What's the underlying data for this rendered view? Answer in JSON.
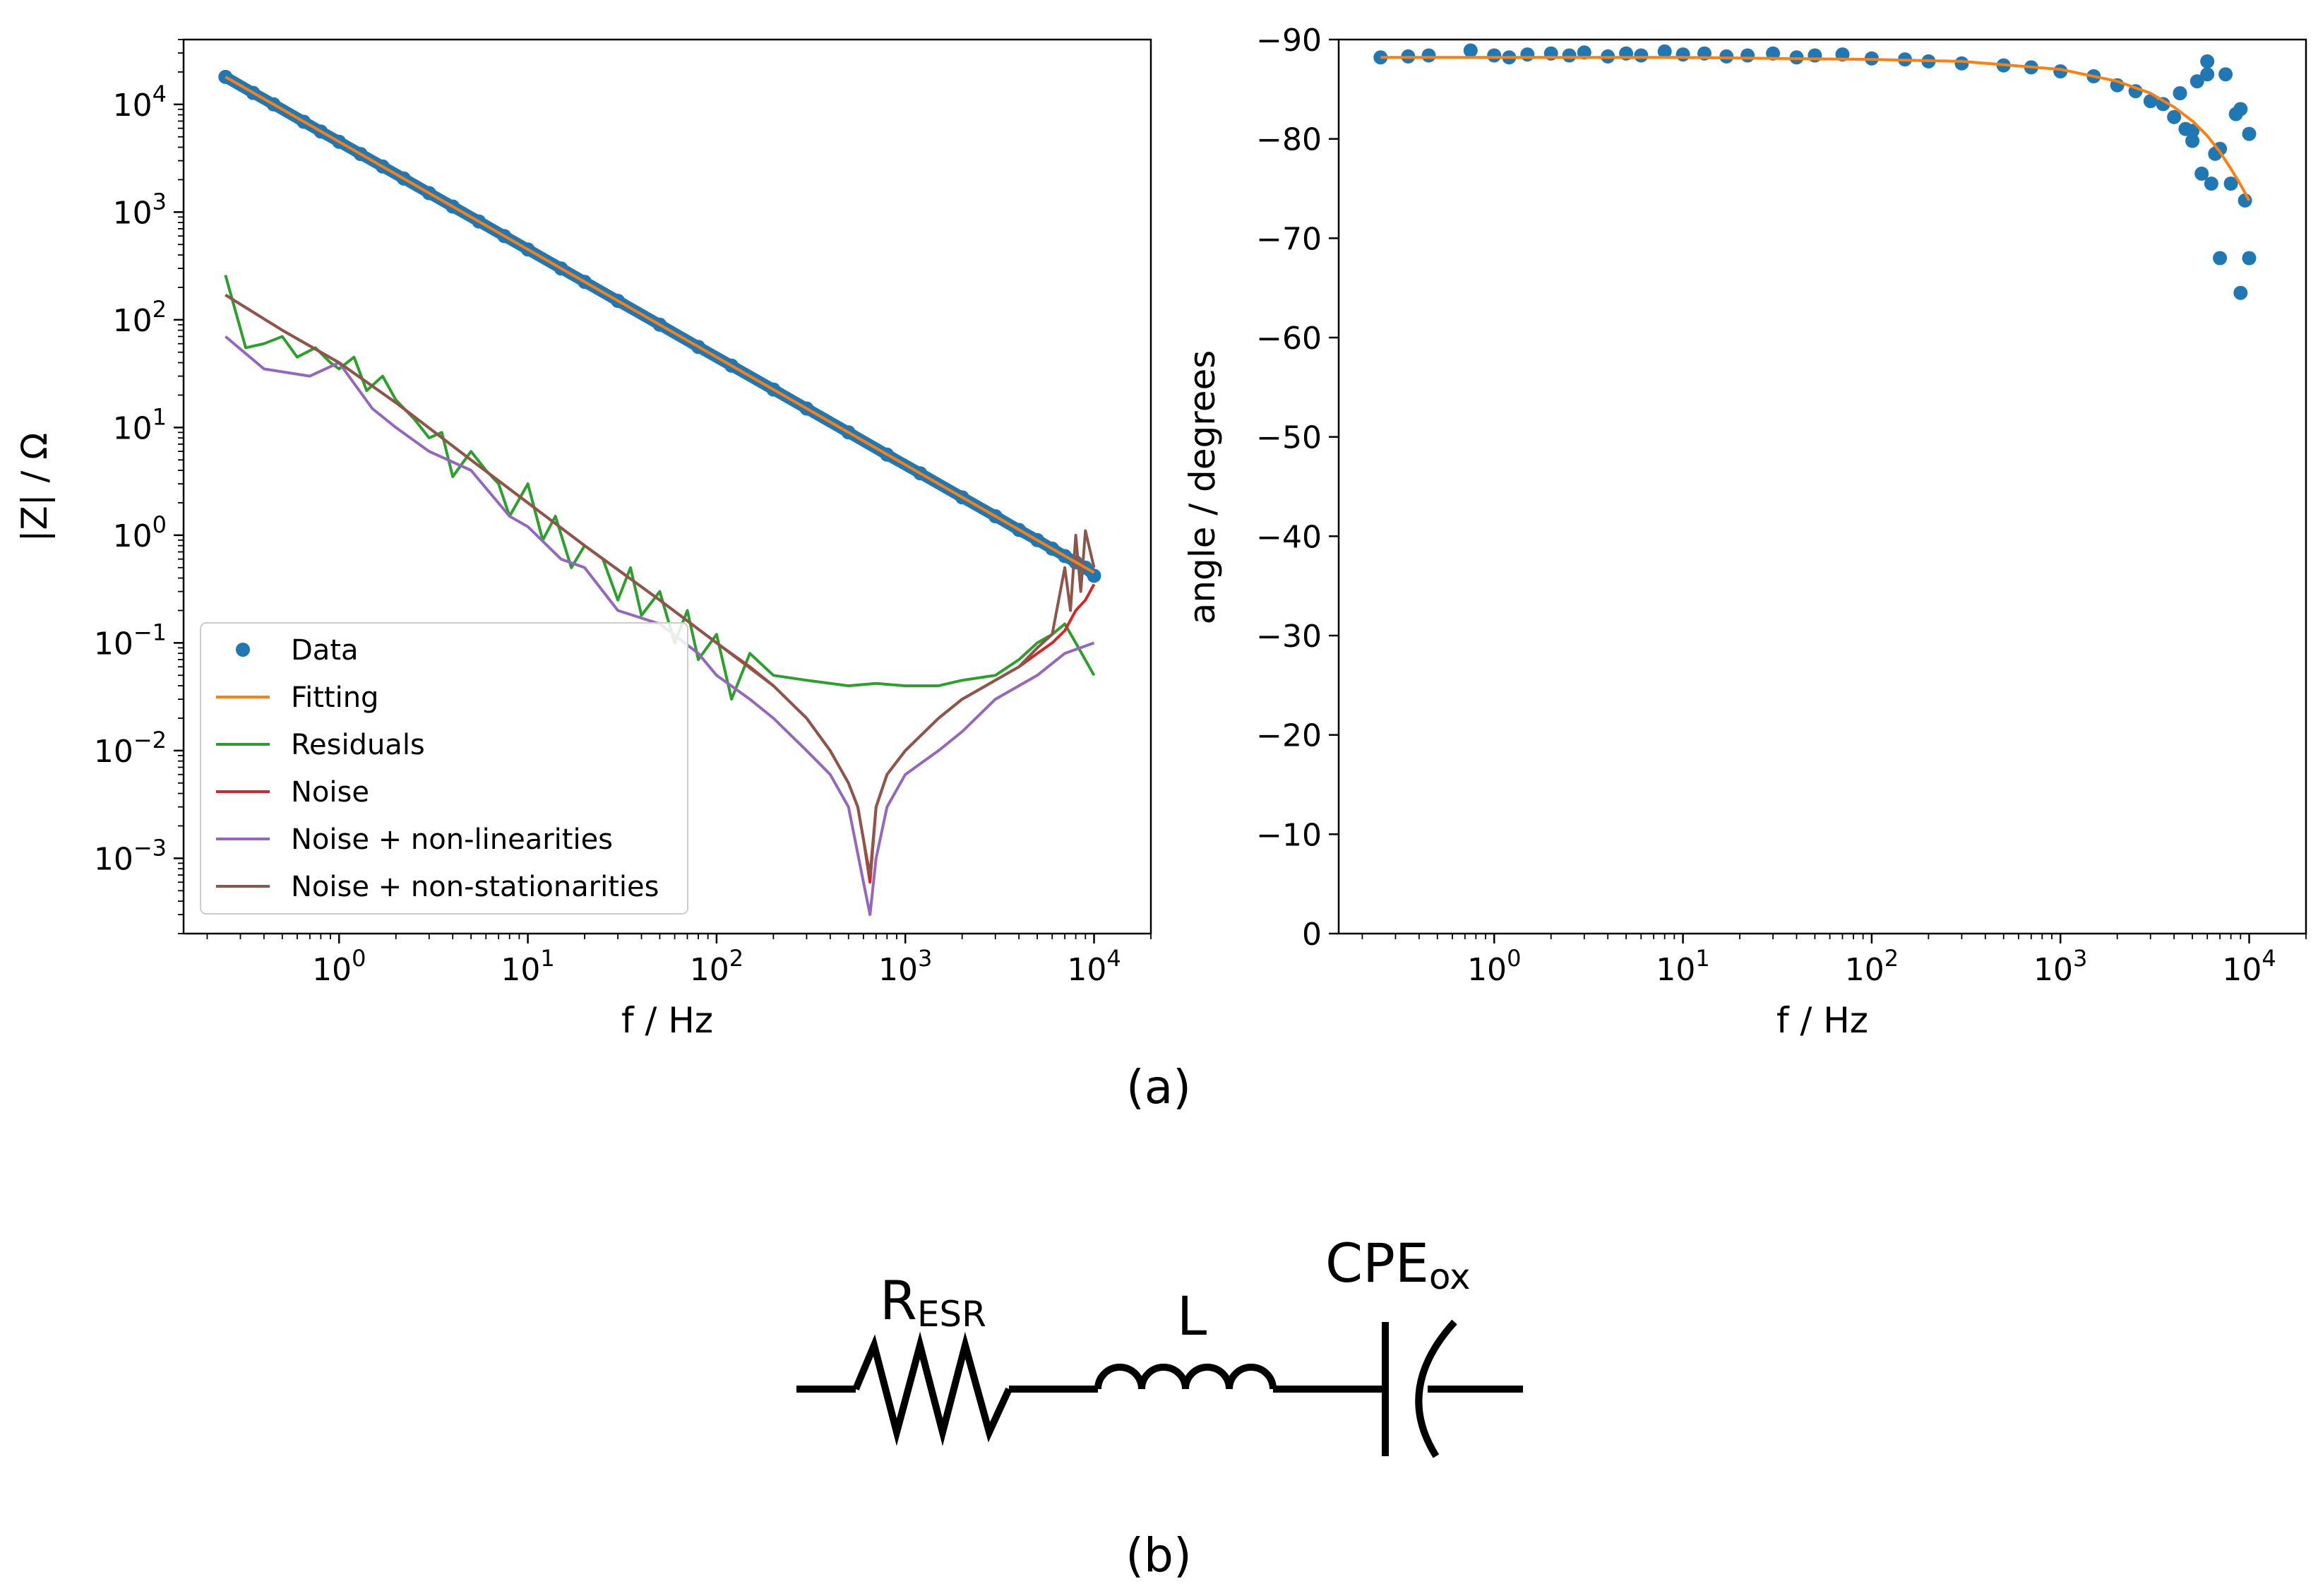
{
  "chart_data": [
    {
      "type": "line",
      "name": "magnitude",
      "xscale": "log",
      "yscale": "log",
      "xlim": [
        0.15,
        20000
      ],
      "ylim": [
        0.0002,
        40000
      ],
      "xlabel": "f / Hz",
      "ylabel": "|Z| / Ω",
      "xticks": [
        {
          "value": 1,
          "base": "10",
          "exp": "0"
        },
        {
          "value": 10,
          "base": "10",
          "exp": "1"
        },
        {
          "value": 100,
          "base": "10",
          "exp": "2"
        },
        {
          "value": 1000,
          "base": "10",
          "exp": "3"
        },
        {
          "value": 10000,
          "base": "10",
          "exp": "4"
        }
      ],
      "yticks": [
        {
          "value": 0.001,
          "base": "10",
          "exp": "−3"
        },
        {
          "value": 0.01,
          "base": "10",
          "exp": "−2"
        },
        {
          "value": 0.1,
          "base": "10",
          "exp": "−1"
        },
        {
          "value": 1,
          "base": "10",
          "exp": "0"
        },
        {
          "value": 10,
          "base": "10",
          "exp": "1"
        },
        {
          "value": 100,
          "base": "10",
          "exp": "2"
        },
        {
          "value": 1000,
          "base": "10",
          "exp": "3"
        },
        {
          "value": 10000,
          "base": "10",
          "exp": "4"
        }
      ],
      "legend_position": "bottom-left",
      "series": [
        {
          "name": "Data",
          "kind": "scatter",
          "color": "#1f77b4",
          "x": [
            0.25,
            0.35,
            0.45,
            0.65,
            0.8,
            1,
            1.3,
            1.7,
            2.2,
            3,
            4,
            5.5,
            7.5,
            10,
            15,
            20,
            30,
            50,
            80,
            120,
            200,
            300,
            500,
            800,
            1200,
            2000,
            3000,
            4000,
            5000,
            6000,
            7000,
            8000,
            9000,
            10000
          ],
          "y": [
            18000,
            12800,
            10000,
            6900,
            5600,
            4500,
            3460,
            2650,
            2050,
            1500,
            1125,
            818,
            600,
            450,
            300,
            225,
            150,
            90,
            56,
            37.5,
            22.5,
            15,
            9,
            5.6,
            3.75,
            2.25,
            1.5,
            1.12,
            0.9,
            0.75,
            0.64,
            0.56,
            0.5,
            0.42
          ]
        },
        {
          "name": "Fitting",
          "kind": "line",
          "color": "#ff7f0e",
          "x": [
            0.25,
            1,
            10,
            100,
            1000,
            10000
          ],
          "y": [
            18000,
            4500,
            450,
            45,
            4.5,
            0.45
          ]
        },
        {
          "name": "Residuals",
          "kind": "line",
          "color": "#2ca02c",
          "x": [
            0.25,
            0.32,
            0.4,
            0.5,
            0.6,
            0.75,
            0.9,
            1,
            1.2,
            1.4,
            1.7,
            2,
            2.5,
            3,
            3.5,
            4,
            5,
            6,
            7,
            8,
            10,
            12,
            14,
            17,
            20,
            25,
            30,
            35,
            40,
            50,
            60,
            70,
            80,
            100,
            120,
            150,
            200,
            300,
            500,
            700,
            1000,
            1500,
            2000,
            3000,
            4000,
            5000,
            6000,
            7000,
            8000,
            10000
          ],
          "y": [
            260,
            55,
            60,
            70,
            45,
            55,
            40,
            35,
            45,
            22,
            30,
            18,
            12,
            8,
            9,
            3.5,
            6,
            4,
            3,
            1.5,
            3,
            0.9,
            1.5,
            0.5,
            0.8,
            0.6,
            0.25,
            0.5,
            0.18,
            0.3,
            0.1,
            0.2,
            0.07,
            0.12,
            0.03,
            0.08,
            0.05,
            0.045,
            0.04,
            0.042,
            0.04,
            0.04,
            0.045,
            0.05,
            0.07,
            0.1,
            0.12,
            0.15,
            0.1,
            0.05
          ]
        },
        {
          "name": "Noise",
          "kind": "line",
          "color": "#d62728",
          "x": [
            0.25,
            0.5,
            1,
            2,
            5,
            10,
            20,
            50,
            100,
            150,
            200,
            300,
            400,
            500,
            560,
            600,
            650,
            700,
            800,
            1000,
            1500,
            2000,
            3000,
            4000,
            5000,
            6000,
            7000,
            8000,
            9000,
            10000
          ],
          "y": [
            170,
            80,
            40,
            17,
            5,
            2,
            0.8,
            0.25,
            0.1,
            0.06,
            0.04,
            0.02,
            0.01,
            0.005,
            0.003,
            0.0015,
            0.0006,
            0.003,
            0.006,
            0.01,
            0.02,
            0.03,
            0.045,
            0.06,
            0.08,
            0.1,
            0.13,
            0.2,
            0.25,
            0.35
          ]
        },
        {
          "name": "Noise + non-linearities",
          "kind": "line",
          "color": "#9467bd",
          "x": [
            0.25,
            0.4,
            0.7,
            1,
            1.5,
            2,
            3,
            5,
            8,
            10,
            15,
            20,
            30,
            50,
            80,
            100,
            150,
            200,
            300,
            400,
            500,
            600,
            650,
            700,
            800,
            1000,
            1500,
            2000,
            3000,
            5000,
            7000,
            10000
          ],
          "y": [
            70,
            35,
            30,
            40,
            15,
            10,
            6,
            4,
            1.5,
            1.2,
            0.6,
            0.5,
            0.2,
            0.15,
            0.08,
            0.05,
            0.03,
            0.02,
            0.01,
            0.006,
            0.003,
            0.0006,
            0.0003,
            0.001,
            0.003,
            0.006,
            0.01,
            0.015,
            0.03,
            0.05,
            0.08,
            0.1
          ]
        },
        {
          "name": "Noise + non-stationarities",
          "kind": "line",
          "color": "#8c564b",
          "x": [
            0.25,
            0.5,
            1,
            2,
            5,
            10,
            20,
            50,
            100,
            200,
            300,
            400,
            500,
            560,
            600,
            650,
            700,
            800,
            1000,
            1500,
            2000,
            3000,
            4000,
            5000,
            6000,
            7000,
            7500,
            8000,
            8500,
            9000,
            10000
          ],
          "y": [
            170,
            80,
            40,
            17,
            5,
            2,
            0.8,
            0.25,
            0.1,
            0.04,
            0.02,
            0.01,
            0.005,
            0.003,
            0.0015,
            0.0007,
            0.003,
            0.006,
            0.01,
            0.02,
            0.03,
            0.045,
            0.06,
            0.09,
            0.12,
            0.5,
            0.2,
            1,
            0.3,
            1.1,
            0.5
          ]
        }
      ]
    },
    {
      "type": "scatter",
      "name": "phase",
      "xscale": "log",
      "xlim": [
        0.15,
        20000
      ],
      "ylim": [
        0,
        -90
      ],
      "xlabel": "f / Hz",
      "ylabel": "angle / degrees",
      "xticks": [
        {
          "value": 1,
          "base": "10",
          "exp": "0"
        },
        {
          "value": 10,
          "base": "10",
          "exp": "1"
        },
        {
          "value": 100,
          "base": "10",
          "exp": "2"
        },
        {
          "value": 1000,
          "base": "10",
          "exp": "3"
        },
        {
          "value": 10000,
          "base": "10",
          "exp": "4"
        }
      ],
      "yticks": [
        {
          "value": 0,
          "label": "0"
        },
        {
          "value": -10,
          "label": "−10"
        },
        {
          "value": -20,
          "label": "−20"
        },
        {
          "value": -30,
          "label": "−30"
        },
        {
          "value": -40,
          "label": "−40"
        },
        {
          "value": -50,
          "label": "−50"
        },
        {
          "value": -60,
          "label": "−60"
        },
        {
          "value": -70,
          "label": "−70"
        },
        {
          "value": -80,
          "label": "−80"
        },
        {
          "value": -90,
          "label": "−90"
        }
      ],
      "series": [
        {
          "name": "Data",
          "kind": "scatter",
          "color": "#1f77b4",
          "x": [
            0.25,
            0.35,
            0.45,
            0.75,
            1,
            1.2,
            1.5,
            2,
            2.5,
            3,
            4,
            5,
            6,
            8,
            10,
            13,
            17,
            22,
            30,
            40,
            50,
            70,
            100,
            150,
            200,
            300,
            500,
            700,
            1000,
            1500,
            2000,
            2500,
            3000,
            3500,
            4000,
            4300,
            4600,
            5000,
            5300,
            5600,
            6000,
            6300,
            6600,
            7000,
            7500,
            8000,
            8500,
            9000,
            9500,
            10000,
            7000,
            9000,
            10000,
            6000,
            5000
          ],
          "y": [
            -88.2,
            -88.3,
            -88.4,
            -88.9,
            -88.4,
            -88.2,
            -88.5,
            -88.6,
            -88.4,
            -88.7,
            -88.3,
            -88.6,
            -88.4,
            -88.8,
            -88.5,
            -88.6,
            -88.3,
            -88.4,
            -88.6,
            -88.2,
            -88.4,
            -88.5,
            -88.1,
            -88.0,
            -87.8,
            -87.6,
            -87.4,
            -87.2,
            -86.8,
            -86.3,
            -85.4,
            -84.8,
            -83.8,
            -83.5,
            -82.2,
            -84.6,
            -81.0,
            -80.8,
            -85.8,
            -76.5,
            -87.8,
            -75.5,
            -78.5,
            -79.0,
            -86.5,
            -75.5,
            -82.5,
            -83.0,
            -73.8,
            -80.5,
            -68.0,
            -64.5,
            -68.0,
            -86.5,
            -79.8
          ]
        },
        {
          "name": "Fitting",
          "kind": "line",
          "color": "#ff7f0e",
          "x": [
            0.25,
            1,
            10,
            100,
            300,
            1000,
            2000,
            3000,
            4000,
            5000,
            6000,
            7000,
            8000,
            9000,
            10000
          ],
          "y": [
            -88.2,
            -88.2,
            -88.2,
            -88.0,
            -87.8,
            -87.0,
            -85.8,
            -84.6,
            -83.2,
            -81.8,
            -80.3,
            -78.7,
            -77.0,
            -75.4,
            -73.8
          ]
        }
      ]
    }
  ],
  "figure": {
    "label_a": "(a)",
    "label_b": "(b)"
  },
  "circuit": {
    "resistor_label": "R",
    "resistor_sub": "ESR",
    "inductor_label": "L",
    "cpe_label": "CPE",
    "cpe_sub": "ox"
  }
}
